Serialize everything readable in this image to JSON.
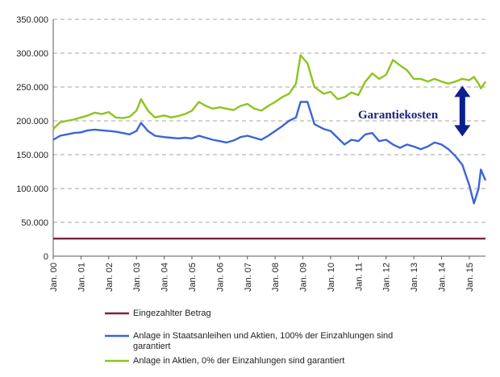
{
  "chart_data": {
    "type": "line",
    "title": "",
    "xlabel": "",
    "ylabel": "",
    "ylim": [
      0,
      350000
    ],
    "y_ticks": [
      "0",
      "50.000",
      "100.000",
      "150.000",
      "200.000",
      "250.000",
      "300.000",
      "350.000"
    ],
    "x_ticks": [
      "Jan. 00",
      "Jan. 01",
      "Jan. 02",
      "Jan. 03",
      "Jan. 04",
      "Jan. 05",
      "Jan. 06",
      "Jan. 07",
      "Jan. 08",
      "Jan. 09",
      "Jan. 10",
      "Jan. 11",
      "Jan. 12",
      "Jan. 13",
      "Jan. 14",
      "Jan. 15"
    ],
    "grid": "horizontal dashed",
    "legend_position": "bottom",
    "annotation": {
      "text": "Garantiekosten",
      "type": "double-arrow",
      "x_date": "2014-10",
      "y_from": 177000,
      "y_to": 252000
    },
    "series": [
      {
        "name": "Eingezahlter Betrag",
        "color": "#7b2344",
        "points": [
          [
            "2000-01",
            26000
          ],
          [
            "2015-08",
            26000
          ]
        ]
      },
      {
        "name": "Anlage in Staatsanleihen und Aktien, 100% der Einzahlungen sind garantiert",
        "color": "#3c64d6",
        "points": [
          [
            "2000-01",
            172000
          ],
          [
            "2000-04",
            178000
          ],
          [
            "2000-07",
            180000
          ],
          [
            "2000-10",
            182000
          ],
          [
            "2001-01",
            183000
          ],
          [
            "2001-04",
            186000
          ],
          [
            "2001-07",
            187000
          ],
          [
            "2001-10",
            186000
          ],
          [
            "2002-01",
            185000
          ],
          [
            "2002-04",
            184000
          ],
          [
            "2002-07",
            182000
          ],
          [
            "2002-10",
            180000
          ],
          [
            "2003-01",
            185000
          ],
          [
            "2003-03",
            197000
          ],
          [
            "2003-06",
            185000
          ],
          [
            "2003-09",
            178000
          ],
          [
            "2004-01",
            176000
          ],
          [
            "2004-04",
            175000
          ],
          [
            "2004-07",
            174000
          ],
          [
            "2004-10",
            175000
          ],
          [
            "2005-01",
            174000
          ],
          [
            "2005-04",
            178000
          ],
          [
            "2005-07",
            175000
          ],
          [
            "2005-10",
            172000
          ],
          [
            "2006-01",
            170000
          ],
          [
            "2006-04",
            168000
          ],
          [
            "2006-07",
            171000
          ],
          [
            "2006-10",
            176000
          ],
          [
            "2007-01",
            178000
          ],
          [
            "2007-04",
            175000
          ],
          [
            "2007-07",
            172000
          ],
          [
            "2007-10",
            178000
          ],
          [
            "2008-01",
            185000
          ],
          [
            "2008-04",
            192000
          ],
          [
            "2008-07",
            200000
          ],
          [
            "2008-10",
            205000
          ],
          [
            "2008-12",
            228000
          ],
          [
            "2009-03",
            228000
          ],
          [
            "2009-06",
            195000
          ],
          [
            "2009-10",
            188000
          ],
          [
            "2010-01",
            185000
          ],
          [
            "2010-04",
            175000
          ],
          [
            "2010-07",
            165000
          ],
          [
            "2010-10",
            172000
          ],
          [
            "2011-01",
            170000
          ],
          [
            "2011-04",
            180000
          ],
          [
            "2011-07",
            182000
          ],
          [
            "2011-10",
            170000
          ],
          [
            "2012-01",
            172000
          ],
          [
            "2012-04",
            165000
          ],
          [
            "2012-07",
            160000
          ],
          [
            "2012-10",
            165000
          ],
          [
            "2013-01",
            162000
          ],
          [
            "2013-04",
            158000
          ],
          [
            "2013-07",
            162000
          ],
          [
            "2013-10",
            168000
          ],
          [
            "2014-01",
            165000
          ],
          [
            "2014-04",
            158000
          ],
          [
            "2014-07",
            148000
          ],
          [
            "2014-10",
            135000
          ],
          [
            "2015-01",
            105000
          ],
          [
            "2015-03",
            78000
          ],
          [
            "2015-05",
            100000
          ],
          [
            "2015-06",
            128000
          ],
          [
            "2015-08",
            112000
          ]
        ]
      },
      {
        "name": "Anlage in Aktien, 0% der Einzahlungen sind garantiert",
        "color": "#8fc31f",
        "points": [
          [
            "2000-01",
            188000
          ],
          [
            "2000-04",
            198000
          ],
          [
            "2000-07",
            200000
          ],
          [
            "2000-10",
            202000
          ],
          [
            "2001-01",
            205000
          ],
          [
            "2001-04",
            208000
          ],
          [
            "2001-07",
            212000
          ],
          [
            "2001-10",
            210000
          ],
          [
            "2002-01",
            213000
          ],
          [
            "2002-04",
            205000
          ],
          [
            "2002-07",
            204000
          ],
          [
            "2002-10",
            206000
          ],
          [
            "2003-01",
            215000
          ],
          [
            "2003-03",
            232000
          ],
          [
            "2003-06",
            215000
          ],
          [
            "2003-09",
            205000
          ],
          [
            "2004-01",
            208000
          ],
          [
            "2004-04",
            205000
          ],
          [
            "2004-07",
            207000
          ],
          [
            "2004-10",
            210000
          ],
          [
            "2005-01",
            215000
          ],
          [
            "2005-04",
            228000
          ],
          [
            "2005-07",
            222000
          ],
          [
            "2005-10",
            218000
          ],
          [
            "2006-01",
            220000
          ],
          [
            "2006-04",
            218000
          ],
          [
            "2006-07",
            216000
          ],
          [
            "2006-10",
            222000
          ],
          [
            "2007-01",
            225000
          ],
          [
            "2007-04",
            218000
          ],
          [
            "2007-07",
            215000
          ],
          [
            "2007-10",
            222000
          ],
          [
            "2008-01",
            228000
          ],
          [
            "2008-04",
            235000
          ],
          [
            "2008-07",
            240000
          ],
          [
            "2008-10",
            255000
          ],
          [
            "2008-12",
            297000
          ],
          [
            "2009-03",
            285000
          ],
          [
            "2009-06",
            250000
          ],
          [
            "2009-10",
            240000
          ],
          [
            "2010-01",
            243000
          ],
          [
            "2010-04",
            232000
          ],
          [
            "2010-07",
            235000
          ],
          [
            "2010-10",
            242000
          ],
          [
            "2011-01",
            238000
          ],
          [
            "2011-04",
            258000
          ],
          [
            "2011-07",
            270000
          ],
          [
            "2011-10",
            262000
          ],
          [
            "2012-01",
            268000
          ],
          [
            "2012-04",
            290000
          ],
          [
            "2012-07",
            282000
          ],
          [
            "2012-10",
            275000
          ],
          [
            "2013-01",
            262000
          ],
          [
            "2013-04",
            262000
          ],
          [
            "2013-07",
            258000
          ],
          [
            "2013-10",
            262000
          ],
          [
            "2014-01",
            258000
          ],
          [
            "2014-04",
            255000
          ],
          [
            "2014-07",
            258000
          ],
          [
            "2014-10",
            262000
          ],
          [
            "2015-01",
            260000
          ],
          [
            "2015-03",
            265000
          ],
          [
            "2015-05",
            255000
          ],
          [
            "2015-06",
            248000
          ],
          [
            "2015-08",
            258000
          ]
        ]
      }
    ]
  }
}
